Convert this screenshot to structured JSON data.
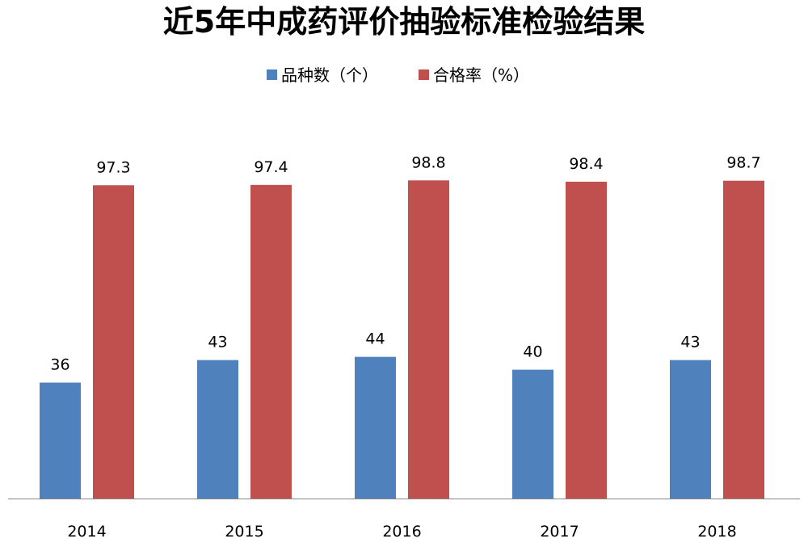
{
  "chart_data": {
    "type": "bar",
    "title": "近5年中成药评价抽验标准检验结果",
    "categories": [
      "2014",
      "2015",
      "2016",
      "2017",
      "2018"
    ],
    "series": [
      {
        "name": "品种数（个）",
        "values": [
          36,
          43,
          44,
          40,
          43
        ],
        "color": "#4F81BD"
      },
      {
        "name": "合格率（%）",
        "values": [
          97.3,
          97.4,
          98.8,
          98.4,
          98.7
        ],
        "color": "#C0504D"
      }
    ],
    "data_labels": [
      "36",
      "43",
      "44",
      "40",
      "43",
      "97.3",
      "97.4",
      "98.8",
      "98.4",
      "98.7"
    ],
    "ylim": [
      0,
      100
    ],
    "grid": false,
    "legend_position": "top-center",
    "xlabel": "",
    "ylabel": ""
  }
}
